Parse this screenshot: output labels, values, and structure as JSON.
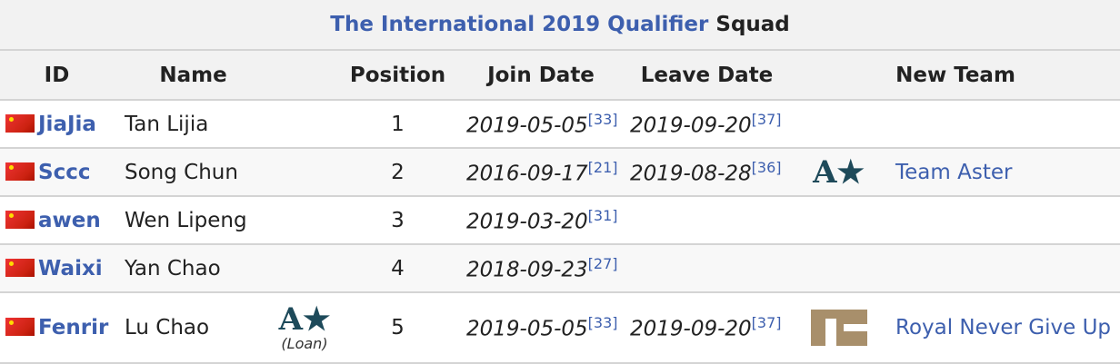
{
  "title": {
    "link": "The International 2019 Qualifier",
    "suffix": " Squad"
  },
  "columns": [
    "ID",
    "Name",
    "Position",
    "Join Date",
    "Leave Date",
    "New Team"
  ],
  "rows": [
    {
      "id": "JiaJia",
      "name": "Tan Lijia",
      "position": "1",
      "join": "2019-05-05",
      "join_ref": "[33]",
      "leave": "2019-09-20",
      "leave_ref": "[37]",
      "new_team": ""
    },
    {
      "id": "Sccc",
      "name": "Song Chun",
      "position": "2",
      "join": "2016-09-17",
      "join_ref": "[21]",
      "leave": "2019-08-28",
      "leave_ref": "[36]",
      "new_team": "Team Aster",
      "new_team_logo": "team-aster-logo"
    },
    {
      "id": "awen",
      "name": "Wen Lipeng",
      "position": "3",
      "join": "2019-03-20",
      "join_ref": "[31]",
      "leave": "",
      "leave_ref": "",
      "new_team": ""
    },
    {
      "id": "Waixi",
      "name": "Yan Chao",
      "position": "4",
      "join": "2018-09-23",
      "join_ref": "[27]",
      "leave": "",
      "leave_ref": "",
      "new_team": ""
    },
    {
      "id": "Fenrir",
      "name": "Lu Chao",
      "loan_note": "(Loan)",
      "loan_logo": "team-aster-logo",
      "position": "5",
      "join": "2019-05-05",
      "join_ref": "[33]",
      "leave": "2019-09-20",
      "leave_ref": "[37]",
      "new_team": "Royal Never Give Up",
      "new_team_logo": "rng-logo"
    }
  ],
  "flag_icon": "china-flag-icon",
  "colors": {
    "link": "#3d5fae",
    "header_bg": "#f2f2f2",
    "border": "#d4d4d4"
  }
}
